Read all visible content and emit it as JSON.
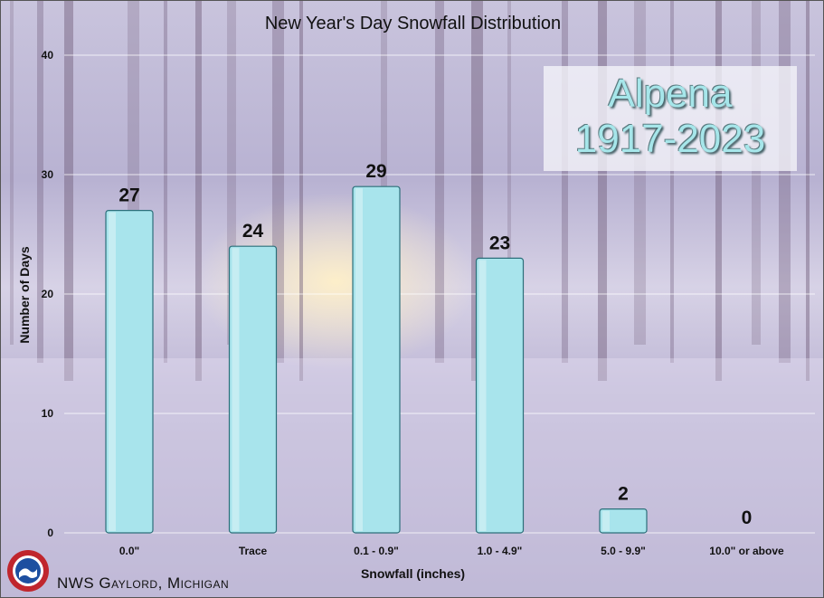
{
  "chart_data": {
    "type": "bar",
    "title": "New Year's Day Snowfall Distribution",
    "xlabel": "Snowfall (inches)",
    "ylabel": "Number of Days",
    "ylim": [
      0,
      40
    ],
    "yticks": [
      0,
      10,
      20,
      30,
      40
    ],
    "grid": true,
    "categories": [
      "0.0\"",
      "Trace",
      "0.1 - 0.9\"",
      "1.0 - 4.9\"",
      "5.0 - 9.9\"",
      "10.0\" or above"
    ],
    "values": [
      27,
      24,
      29,
      23,
      2,
      0
    ],
    "bar_color": "#a8e4ec"
  },
  "station": {
    "name": "Alpena",
    "period": "1917-2023"
  },
  "credit": "NWS Gaylord, Michigan",
  "logo_icon": "noaa-nws-logo-icon"
}
